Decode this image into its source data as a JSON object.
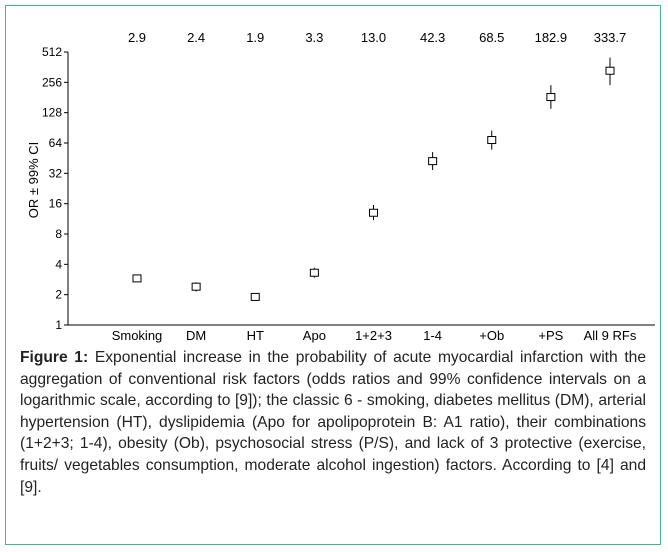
{
  "chart_data": {
    "type": "scatter",
    "ylabel": "OR ± 99% CI",
    "yscale": "log2",
    "ylim": [
      1,
      512
    ],
    "yticks": [
      1,
      2,
      4,
      8,
      16,
      32,
      64,
      128,
      256,
      512
    ],
    "grid": false,
    "categories": [
      "Smoking",
      "DM",
      "HT",
      "Apo",
      "1+2+3",
      "1-4",
      "+Ob",
      "+PS",
      "All 9 RFs"
    ],
    "top_labels": [
      "2.9",
      "2.4",
      "1.9",
      "3.3",
      "13.0",
      "42.3",
      "68.5",
      "182.9",
      "333.7"
    ],
    "values": [
      2.9,
      2.4,
      1.9,
      3.3,
      13.0,
      42.3,
      68.5,
      182.9,
      333.7
    ],
    "ci_low": [
      2.75,
      2.15,
      1.78,
      2.95,
      11.0,
      34.5,
      55.0,
      140.0,
      240.0
    ],
    "ci_high": [
      3.05,
      2.65,
      2.02,
      3.7,
      15.5,
      52.0,
      85.0,
      240.0,
      450.0
    ]
  },
  "caption": {
    "label": "Figure 1:",
    "text": "Exponential increase in the probability of acute myocardial infarction with the aggregation of conventional risk factors (odds ratios and 99% confidence intervals on a logarithmic scale, according to [9]); the classic 6 - smoking, diabetes mellitus (DM), arterial hypertension (HT), dyslipidemia (Apo for apolipoprotein B: A1 ratio), their combinations (1+2+3; 1-4), obesity (Ob), psychosocial stress (P/S), and lack of 3 protective (exercise, fruits/ vegetables consumption, moderate alcohol ingestion) factors. According to [4] and [9]."
  },
  "colors": {
    "border": "#3fb6a4",
    "ink": "#000000"
  }
}
